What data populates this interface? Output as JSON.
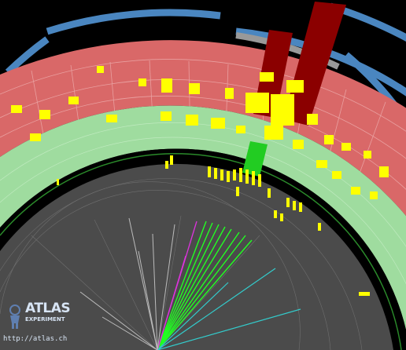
{
  "logo": {
    "atlas_word": "ATLAS",
    "experiment_word": "EXPERIMENT",
    "url": "http://atlas.ch"
  },
  "colors": {
    "background": "#000000",
    "muon_chambers": "#4a86c0",
    "hadronic_calorimeter": "#d96868",
    "em_calorimeter": "#9fdc9f",
    "inner_detector": "#4b4b4b",
    "energy_deposit": "#ffff00",
    "energy_tower": "#8b0000",
    "jet_track": "#22ff22",
    "track_magenta": "#dd33dd",
    "track_cyan": "#33cccc",
    "track_grey": "#bbbbbb"
  }
}
